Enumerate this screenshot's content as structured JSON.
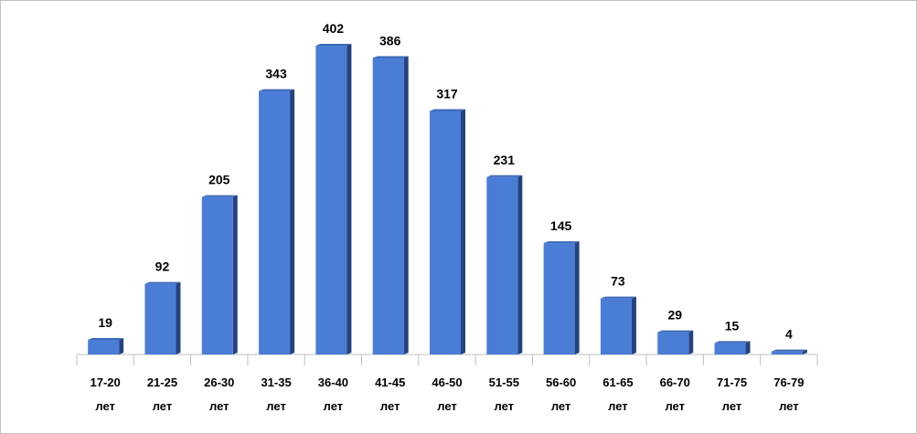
{
  "chart_data": {
    "type": "bar",
    "categories": [
      "17-20 лет",
      "21-25 лет",
      "26-30 лет",
      "31-35 лет",
      "36-40 лет",
      "41-45 лет",
      "46-50 лет",
      "51-55 лет",
      "56-60 лет",
      "61-65 лет",
      "66-70 лет",
      "71-75 лет",
      "76-79 лет"
    ],
    "values": [
      19,
      92,
      205,
      343,
      402,
      386,
      317,
      231,
      145,
      73,
      29,
      15,
      4
    ],
    "color": "#4a7dd6"
  }
}
